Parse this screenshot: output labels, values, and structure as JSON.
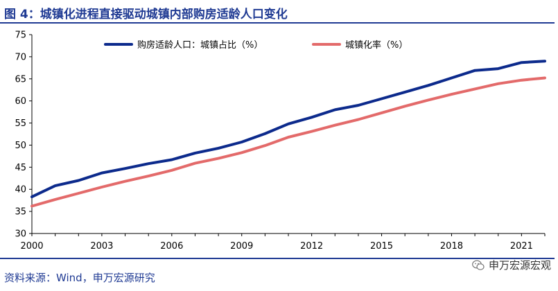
{
  "title": "图 4：城镇化进程直接驱动城镇内部购房适龄人口变化",
  "source": "资料来源：Wind，申万宏源研究",
  "brand": {
    "label": "申万宏源宏观",
    "icon": "wechat-icon"
  },
  "colors": {
    "title": "#1f3a93",
    "series1": "#0c2a8c",
    "series2": "#e36a6a"
  },
  "chart_data": {
    "type": "line",
    "title": "",
    "xlabel": "",
    "ylabel": "",
    "xlim": [
      2000,
      2022
    ],
    "ylim": [
      30,
      75
    ],
    "x_ticks": [
      2000,
      2003,
      2006,
      2009,
      2012,
      2015,
      2018,
      2021
    ],
    "y_ticks": [
      30,
      35,
      40,
      45,
      50,
      55,
      60,
      65,
      70,
      75
    ],
    "grid": false,
    "legend_position": "top",
    "x": [
      2000,
      2001,
      2002,
      2003,
      2004,
      2005,
      2006,
      2007,
      2008,
      2009,
      2010,
      2011,
      2012,
      2013,
      2014,
      2015,
      2016,
      2017,
      2018,
      2019,
      2020,
      2021,
      2022
    ],
    "series": [
      {
        "name": "购房适龄人口：城镇占比（%）",
        "color": "#0c2a8c",
        "values": [
          38.3,
          40.8,
          42.0,
          43.7,
          44.7,
          45.8,
          46.7,
          48.2,
          49.3,
          50.7,
          52.6,
          54.8,
          56.3,
          58.0,
          59.0,
          60.5,
          62.0,
          63.5,
          65.2,
          66.9,
          67.3,
          68.7,
          69.0
        ]
      },
      {
        "name": "城镇化率（%）",
        "color": "#e36a6a",
        "values": [
          36.2,
          37.7,
          39.1,
          40.5,
          41.8,
          43.0,
          44.3,
          45.9,
          47.0,
          48.3,
          49.9,
          51.8,
          53.1,
          54.5,
          55.8,
          57.3,
          58.8,
          60.2,
          61.5,
          62.7,
          63.9,
          64.7,
          65.2
        ]
      }
    ]
  }
}
